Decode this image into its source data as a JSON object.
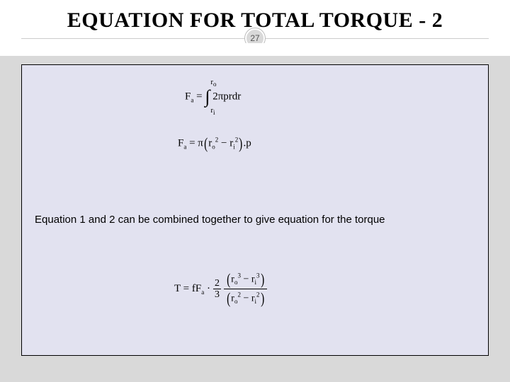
{
  "slide": {
    "title": "EQUATION FOR TOTAL TORQUE - 2",
    "pageNumber": "27",
    "background_color": "#d9d9d9",
    "header_bg": "#ffffff",
    "content_bg": "#e2e2f0",
    "border_color": "#000000",
    "title_fontsize": 30,
    "title_color": "#000000"
  },
  "equations": {
    "eq1": {
      "lhs": "F",
      "lhs_sub": "a",
      "eq": " = ",
      "int_upper_r": "r",
      "int_upper_sub": "o",
      "int_lower_r": "r",
      "int_lower_sub": "i",
      "integrand": " 2πprdr"
    },
    "eq2": {
      "lhs": "F",
      "lhs_sub": "a",
      "eq": " = π",
      "term1_base": "r",
      "term1_sub": "o",
      "term1_sup": "2",
      "minus": " − ",
      "term2_base": "r",
      "term2_sub": "i",
      "term2_sup": "2",
      "tail": ".p"
    },
    "caption": "Equation 1 and 2 can be combined together to give equation for the torque",
    "eq3": {
      "lhs": "T = fF",
      "lhs_sub": "a",
      "dot": " · ",
      "frac1_num": "2",
      "frac1_den": "3",
      "num_r1": "r",
      "num_r1_sub": "o",
      "num_r1_sup": "3",
      "num_minus": " − ",
      "num_r2": "r",
      "num_r2_sub": "i",
      "num_r2_sup": "3",
      "den_r1": "r",
      "den_r1_sub": "o",
      "den_r1_sup": "2",
      "den_minus": " − ",
      "den_r2": "r",
      "den_r2_sub": "i",
      "den_r2_sup": "2"
    }
  }
}
